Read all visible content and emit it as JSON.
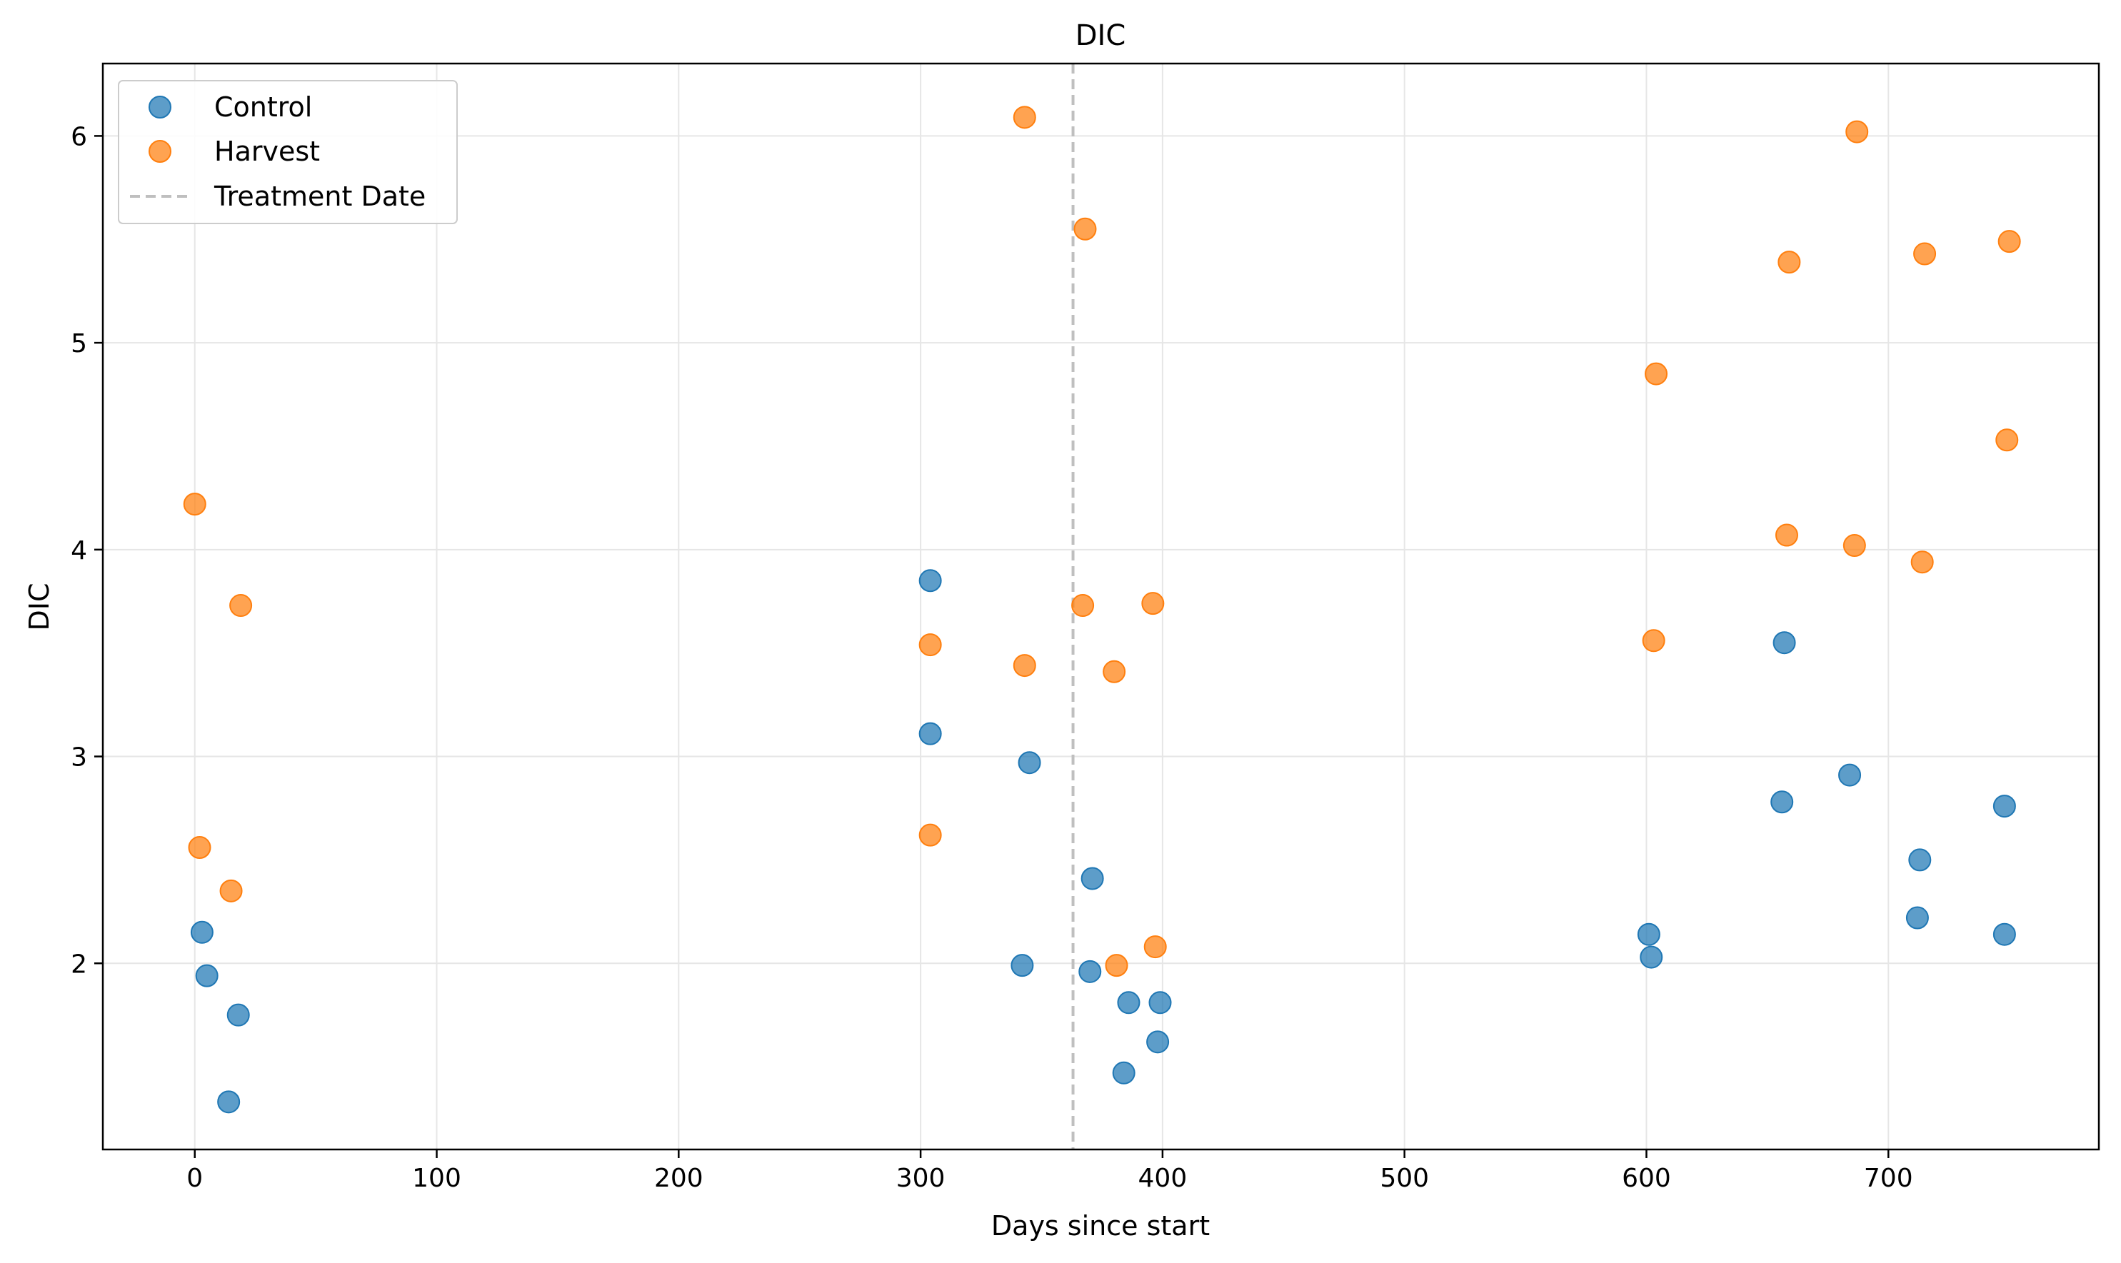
{
  "chart_data": {
    "type": "scatter",
    "title": "DIC",
    "xlabel": "Days since start",
    "ylabel": "DIC",
    "xlim": [
      -38,
      787
    ],
    "ylim": [
      1.1,
      6.35
    ],
    "xticks": [
      0,
      100,
      200,
      300,
      400,
      500,
      600,
      700
    ],
    "yticks": [
      2,
      3,
      4,
      5,
      6
    ],
    "grid": true,
    "legend_position": "top-left",
    "treatment_line": {
      "label": "Treatment Date",
      "x": 363,
      "color": "#bfbfbf"
    },
    "series": [
      {
        "name": "Control",
        "color": "#1f77b4",
        "points": [
          [
            3,
            2.15
          ],
          [
            5,
            1.94
          ],
          [
            18,
            1.75
          ],
          [
            14,
            1.33
          ],
          [
            304,
            3.85
          ],
          [
            304,
            3.11
          ],
          [
            345,
            2.97
          ],
          [
            342,
            1.99
          ],
          [
            371,
            2.41
          ],
          [
            370,
            1.96
          ],
          [
            386,
            1.81
          ],
          [
            399,
            1.81
          ],
          [
            398,
            1.62
          ],
          [
            384,
            1.47
          ],
          [
            601,
            2.14
          ],
          [
            602,
            2.03
          ],
          [
            657,
            3.55
          ],
          [
            656,
            2.78
          ],
          [
            684,
            2.91
          ],
          [
            713,
            2.5
          ],
          [
            712,
            2.22
          ],
          [
            748,
            2.76
          ],
          [
            748,
            2.14
          ]
        ]
      },
      {
        "name": "Harvest",
        "color": "#ff7f0e",
        "points": [
          [
            0,
            4.22
          ],
          [
            19,
            3.73
          ],
          [
            2,
            2.56
          ],
          [
            15,
            2.35
          ],
          [
            343,
            6.09
          ],
          [
            368,
            5.55
          ],
          [
            304,
            3.54
          ],
          [
            304,
            2.62
          ],
          [
            343,
            3.44
          ],
          [
            367,
            3.73
          ],
          [
            396,
            3.74
          ],
          [
            380,
            3.41
          ],
          [
            397,
            2.08
          ],
          [
            381,
            1.99
          ],
          [
            604,
            4.85
          ],
          [
            603,
            3.56
          ],
          [
            659,
            5.39
          ],
          [
            658,
            4.07
          ],
          [
            687,
            6.02
          ],
          [
            686,
            4.02
          ],
          [
            715,
            5.43
          ],
          [
            714,
            3.94
          ],
          [
            750,
            5.49
          ],
          [
            749,
            4.53
          ]
        ]
      }
    ]
  }
}
